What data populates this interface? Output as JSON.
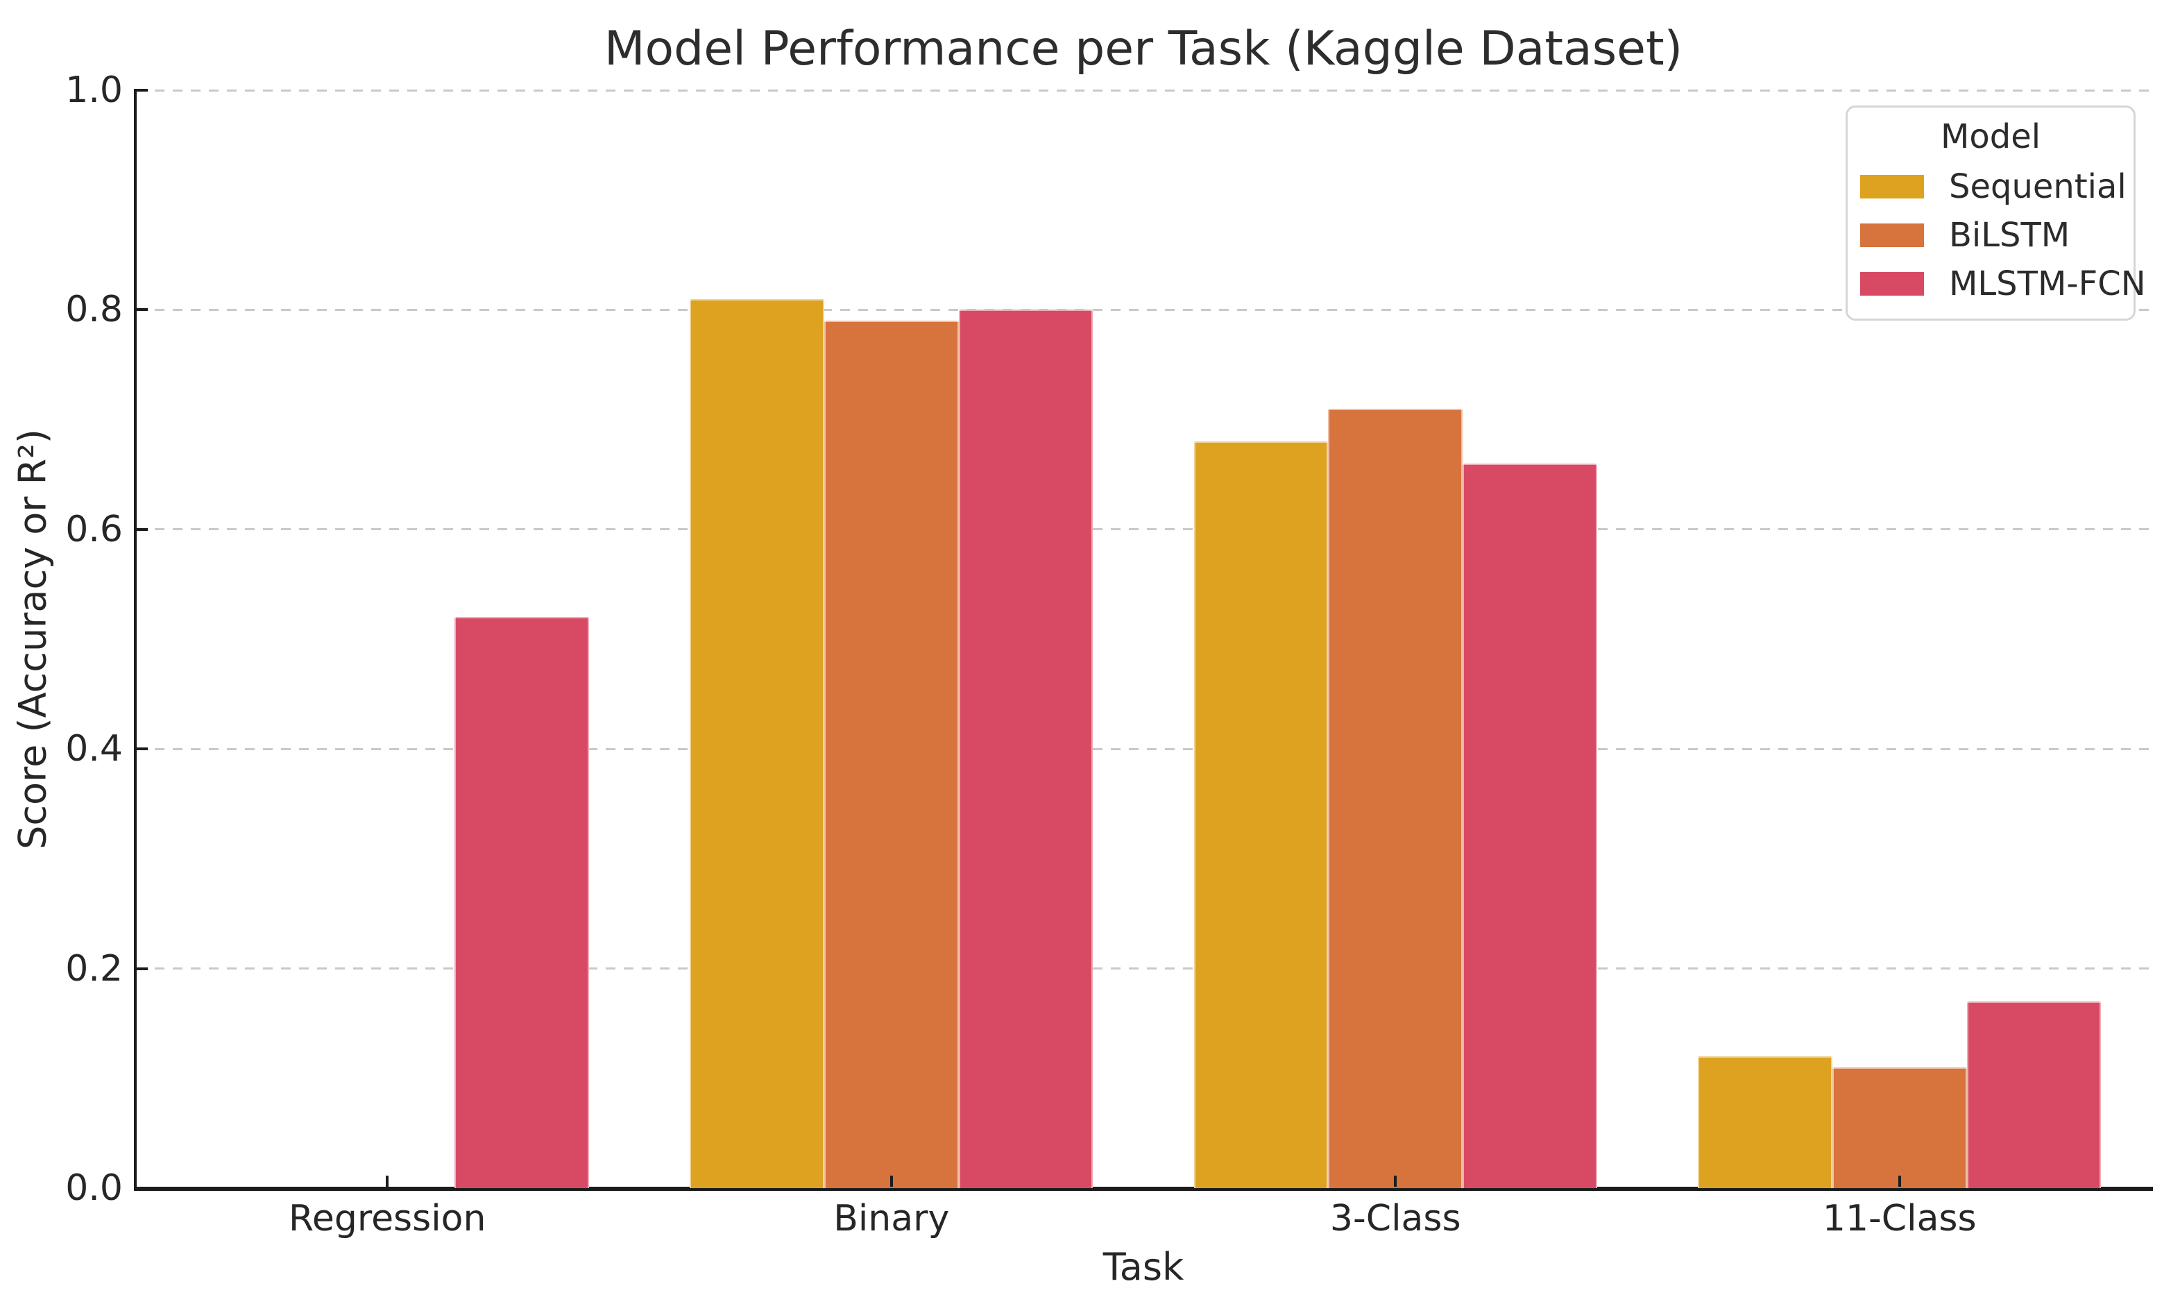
{
  "chart_data": {
    "type": "bar",
    "title": "Model Performance per Task (Kaggle Dataset)",
    "xlabel": "Task",
    "ylabel": "Score (Accuracy or R²)",
    "categories": [
      "Regression",
      "Binary",
      "3-Class",
      "11-Class"
    ],
    "series": [
      {
        "name": "Sequential",
        "color": "#dea221",
        "values": [
          0.0,
          0.81,
          0.68,
          0.12
        ]
      },
      {
        "name": "BiLSTM",
        "color": "#d7733c",
        "values": [
          0.0,
          0.79,
          0.71,
          0.11
        ]
      },
      {
        "name": "MLSTM-FCN",
        "color": "#d84a63",
        "values": [
          0.52,
          0.8,
          0.66,
          0.17
        ]
      }
    ],
    "ylim": [
      0.0,
      1.0
    ],
    "yticks": [
      0.0,
      0.2,
      0.4,
      0.6,
      0.8,
      1.0
    ],
    "grid": "dashed horizontal gridlines",
    "legend": {
      "title": "Model",
      "position": "upper right"
    }
  },
  "colors": {
    "grid": "#c9c9c9",
    "spine": "#1c1c1c",
    "text": "#2b2b2b",
    "legend_border": "#d6d6d6",
    "background": "#ffffff"
  }
}
